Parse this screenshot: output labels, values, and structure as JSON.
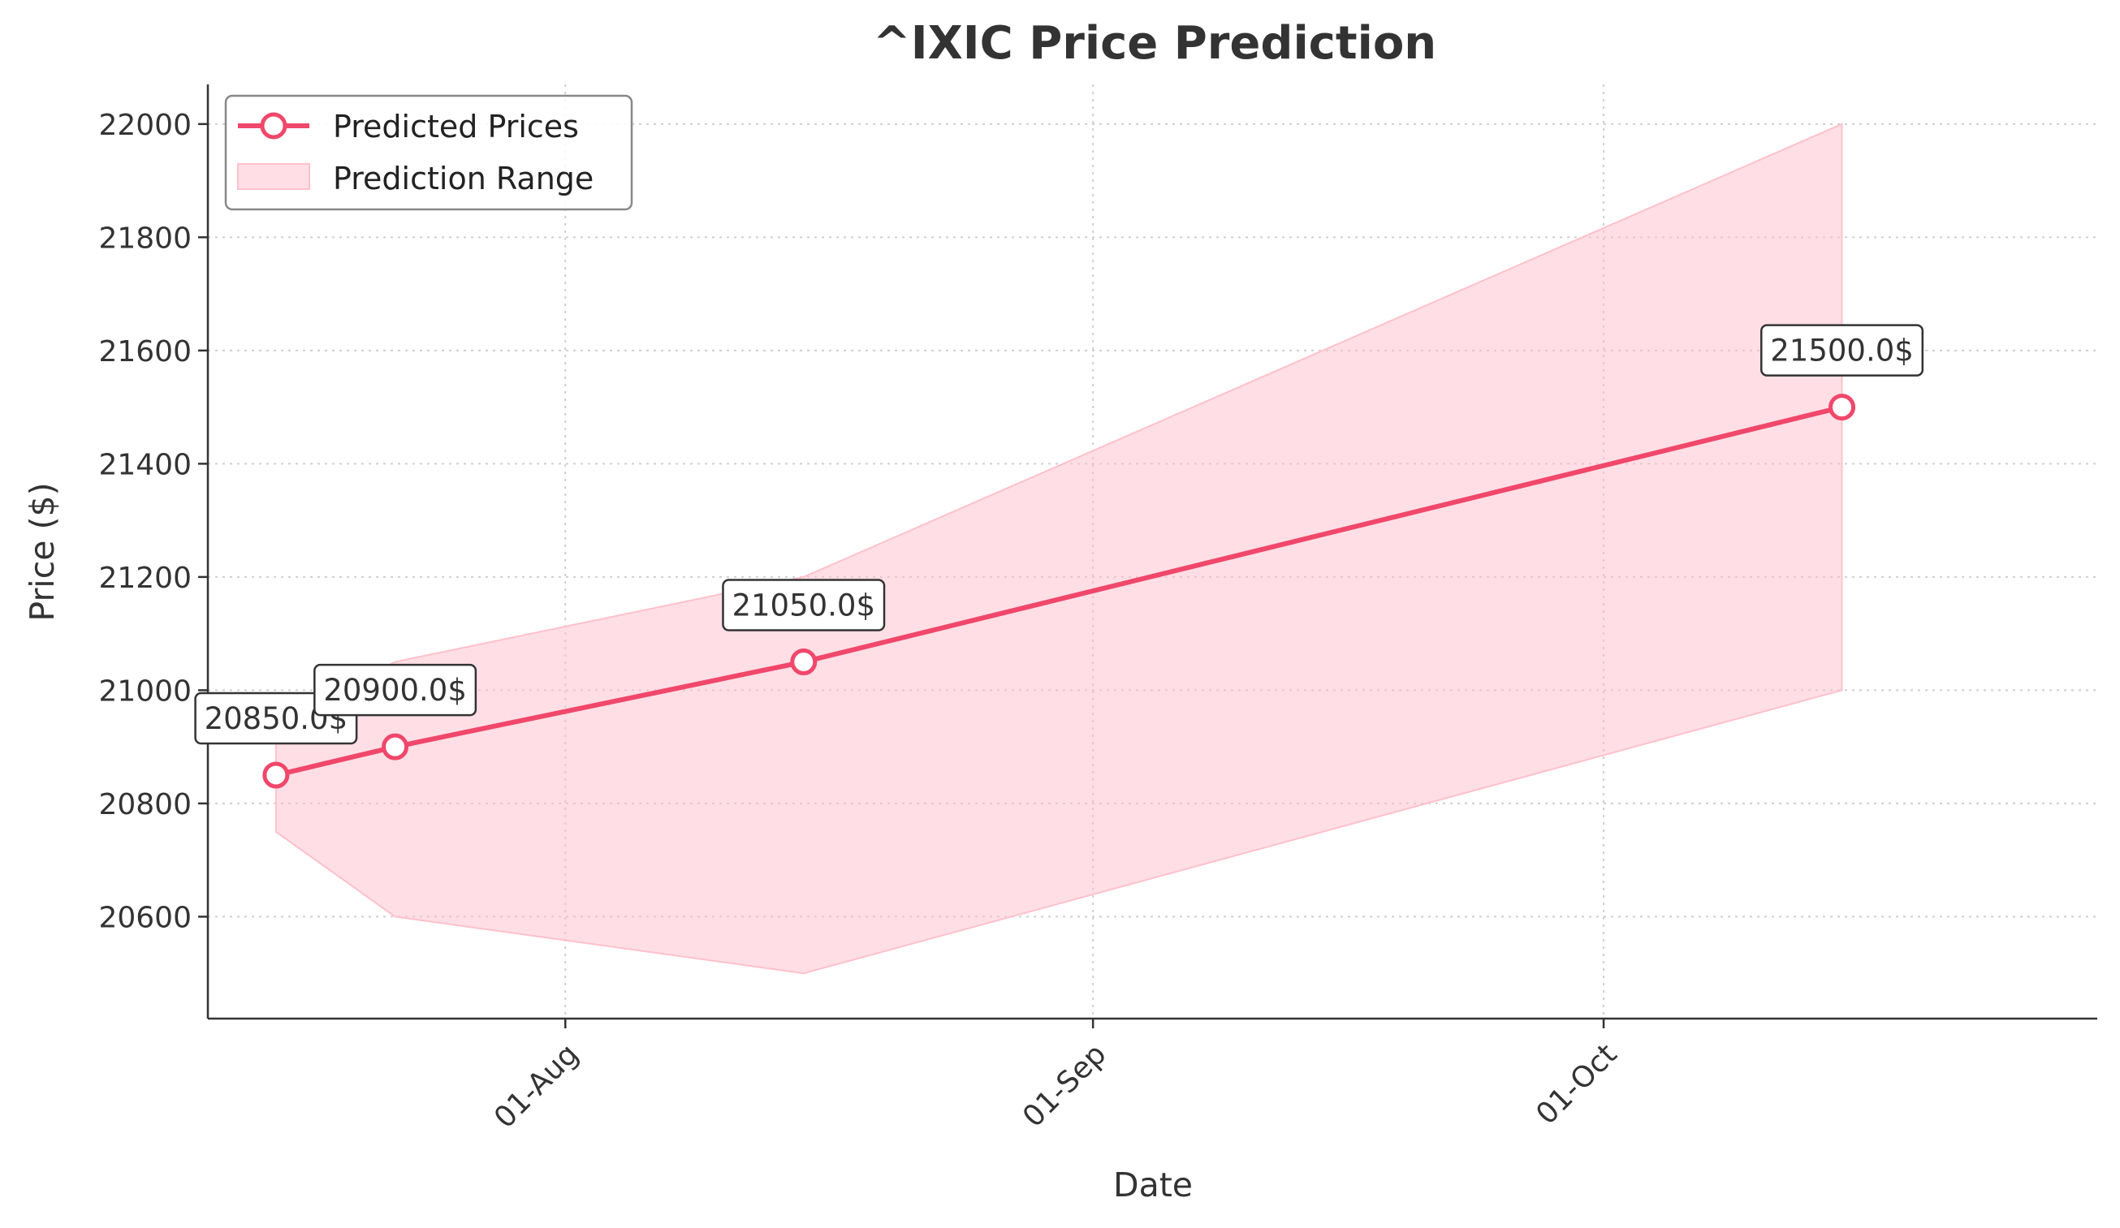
{
  "chart_data": {
    "type": "line",
    "title": "^IXIC Price Prediction",
    "xlabel": "Date",
    "ylabel": "Price ($)",
    "x_ticks": [
      {
        "date": "2025-08-01",
        "label": "01-Aug"
      },
      {
        "date": "2025-09-01",
        "label": "01-Sep"
      },
      {
        "date": "2025-10-01",
        "label": "01-Oct"
      }
    ],
    "y_ticks": [
      20600,
      20800,
      21000,
      21200,
      21400,
      21600,
      21800,
      22000
    ],
    "xlim": [
      "2025-07-11",
      "2025-10-30"
    ],
    "ylim": [
      20420,
      22070
    ],
    "grid": true,
    "legend_position": "top-left",
    "series": [
      {
        "name": "Predicted Prices",
        "color": "#f0476a",
        "points": [
          {
            "date": "2025-07-15",
            "value": 20850,
            "label": "20850.0$"
          },
          {
            "date": "2025-07-22",
            "value": 20900,
            "label": "20900.0$"
          },
          {
            "date": "2025-08-15",
            "value": 21050,
            "label": "21050.0$"
          },
          {
            "date": "2025-10-15",
            "value": 21500,
            "label": "21500.0$"
          }
        ]
      }
    ],
    "range": {
      "name": "Prediction Range",
      "color": "#ffc0cb",
      "points": [
        {
          "date": "2025-07-15",
          "low": 20750,
          "high": 20950
        },
        {
          "date": "2025-07-22",
          "low": 20600,
          "high": 21050
        },
        {
          "date": "2025-08-15",
          "low": 20500,
          "high": 21200
        },
        {
          "date": "2025-10-15",
          "low": 21000,
          "high": 22000
        }
      ]
    }
  }
}
